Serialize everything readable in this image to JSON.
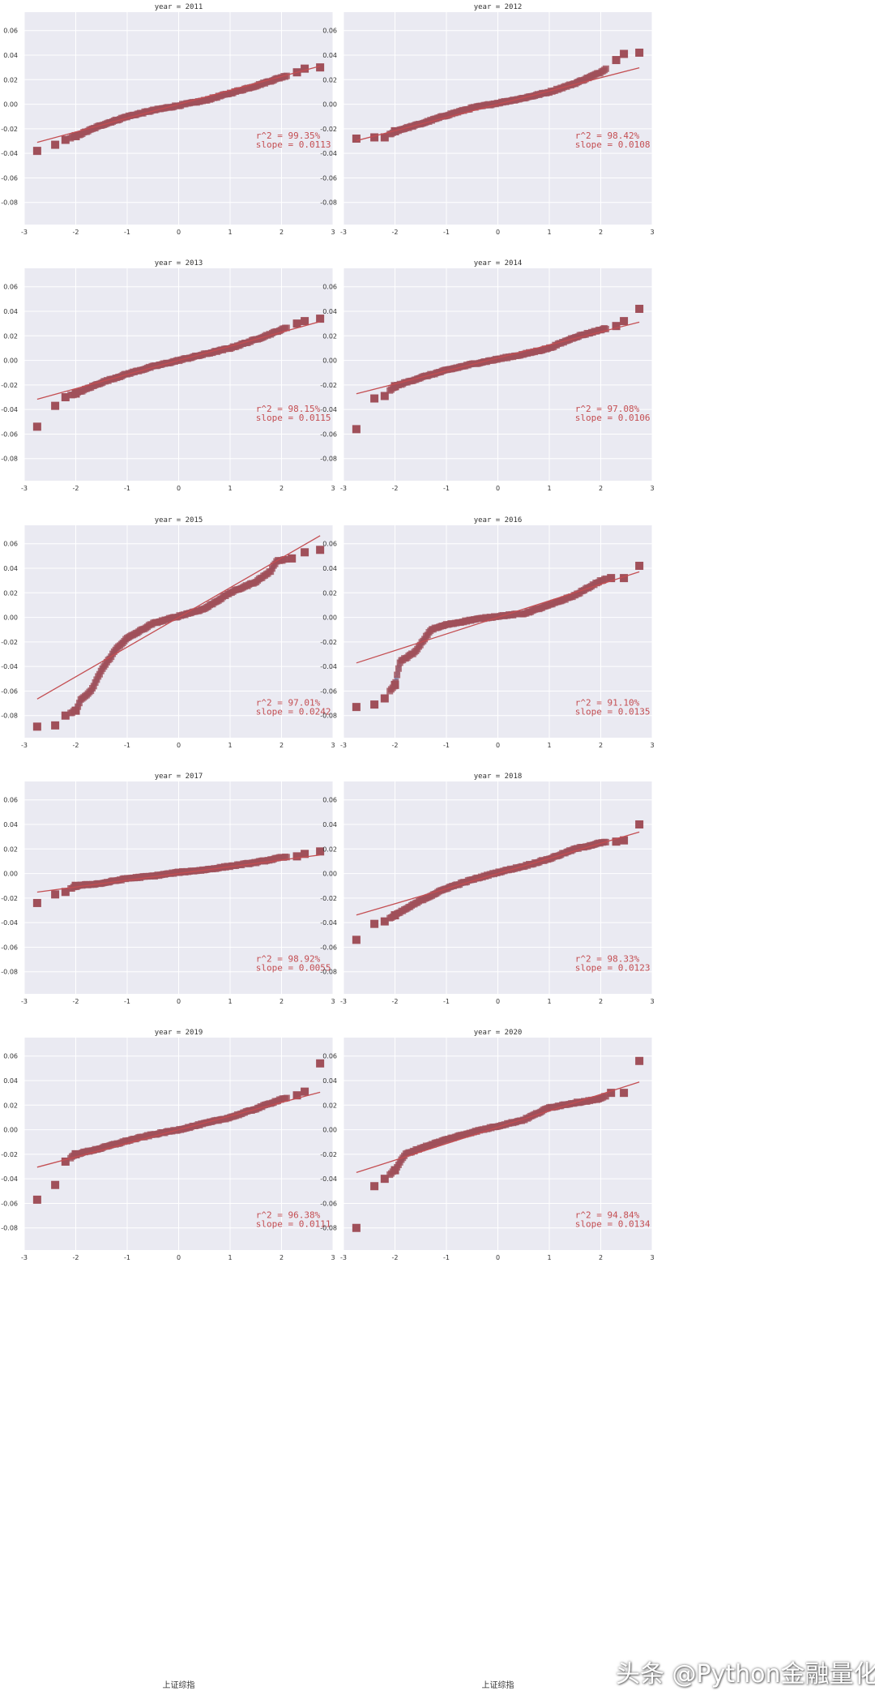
{
  "figure": {
    "xlabel": "上证综指",
    "colors": {
      "panel_bg": "#eaeaf2",
      "grid": "#ffffff",
      "marker": "#a0505a",
      "line": "#c44e52",
      "scatter": "#4c72b0",
      "annotation": "#c44e52",
      "tick_text": "#333333"
    },
    "xlim": [
      -3,
      3
    ],
    "ylim": [
      -0.098,
      0.075
    ],
    "xticks": [
      -3,
      -2,
      -1,
      0,
      1,
      2,
      3
    ],
    "yticks": [
      0.06,
      0.04,
      0.02,
      0.0,
      -0.02,
      -0.04,
      -0.06,
      -0.08
    ],
    "ytick_labels": [
      "0.06",
      "0.04",
      "0.02",
      "0.00",
      "-0.02",
      "-0.04",
      "-0.06",
      "-0.08"
    ],
    "xtick_labels": [
      "-3",
      "-2",
      "-1",
      "0",
      "1",
      "2",
      "3"
    ]
  },
  "watermark": "头条 @Python金融量化",
  "chart_data": [
    {
      "type": "scatter",
      "title": "year = 2011",
      "r2_text": "r^2 = 99.35%",
      "slope_text": "slope = 0.0113",
      "slope": 0.0113,
      "intercept": 0.0,
      "anchors": [
        [
          -2.75,
          -0.038
        ],
        [
          -2.4,
          -0.033
        ],
        [
          -2.2,
          -0.029
        ],
        [
          -2.0,
          -0.026
        ],
        [
          -1.5,
          -0.017
        ],
        [
          -1.0,
          -0.01
        ],
        [
          -0.5,
          -0.005
        ],
        [
          0,
          -0.001
        ],
        [
          0.5,
          0.003
        ],
        [
          1.0,
          0.009
        ],
        [
          1.5,
          0.015
        ],
        [
          2.0,
          0.022
        ],
        [
          2.3,
          0.026
        ],
        [
          2.45,
          0.029
        ],
        [
          2.75,
          0.03
        ]
      ]
    },
    {
      "type": "scatter",
      "title": "year = 2012",
      "r2_text": "r^2 = 98.42%",
      "slope_text": "slope = 0.0108",
      "slope": 0.0108,
      "intercept": 0.0,
      "anchors": [
        [
          -2.75,
          -0.028
        ],
        [
          -2.4,
          -0.027
        ],
        [
          -2.2,
          -0.027
        ],
        [
          -2.0,
          -0.022
        ],
        [
          -1.5,
          -0.016
        ],
        [
          -1.0,
          -0.009
        ],
        [
          -0.5,
          -0.003
        ],
        [
          0,
          0.001
        ],
        [
          0.5,
          0.005
        ],
        [
          1.0,
          0.01
        ],
        [
          1.5,
          0.017
        ],
        [
          2.0,
          0.026
        ],
        [
          2.3,
          0.036
        ],
        [
          2.45,
          0.041
        ],
        [
          2.75,
          0.042
        ]
      ]
    },
    {
      "type": "scatter",
      "title": "year = 2013",
      "r2_text": "r^2 = 98.15%",
      "slope_text": "slope = 0.0115",
      "slope": 0.0115,
      "intercept": 0.0,
      "anchors": [
        [
          -2.75,
          -0.054
        ],
        [
          -2.4,
          -0.037
        ],
        [
          -2.2,
          -0.03
        ],
        [
          -2.0,
          -0.027
        ],
        [
          -1.5,
          -0.018
        ],
        [
          -1.0,
          -0.011
        ],
        [
          -0.5,
          -0.005
        ],
        [
          0,
          0.0
        ],
        [
          0.5,
          0.005
        ],
        [
          1.0,
          0.01
        ],
        [
          1.5,
          0.017
        ],
        [
          2.0,
          0.025
        ],
        [
          2.3,
          0.03
        ],
        [
          2.45,
          0.032
        ],
        [
          2.75,
          0.034
        ]
      ]
    },
    {
      "type": "scatter",
      "title": "year = 2014",
      "r2_text": "r^2 = 97.08%",
      "slope_text": "slope = 0.0106",
      "slope": 0.0106,
      "intercept": 0.002,
      "anchors": [
        [
          -2.75,
          -0.056
        ],
        [
          -2.4,
          -0.031
        ],
        [
          -2.2,
          -0.029
        ],
        [
          -2.0,
          -0.021
        ],
        [
          -1.5,
          -0.014
        ],
        [
          -1.0,
          -0.008
        ],
        [
          -0.5,
          -0.003
        ],
        [
          0,
          0.001
        ],
        [
          0.5,
          0.005
        ],
        [
          1.0,
          0.01
        ],
        [
          1.5,
          0.019
        ],
        [
          2.0,
          0.025
        ],
        [
          2.3,
          0.028
        ],
        [
          2.45,
          0.032
        ],
        [
          2.75,
          0.042
        ]
      ]
    },
    {
      "type": "scatter",
      "title": "year = 2015",
      "r2_text": "r^2 = 97.01%",
      "slope_text": "slope = 0.0242",
      "slope": 0.0242,
      "intercept": 0.0,
      "anchors": [
        [
          -2.75,
          -0.089
        ],
        [
          -2.4,
          -0.088
        ],
        [
          -2.2,
          -0.08
        ],
        [
          -2.0,
          -0.076
        ],
        [
          -1.9,
          -0.067
        ],
        [
          -1.7,
          -0.06
        ],
        [
          -1.5,
          -0.043
        ],
        [
          -1.2,
          -0.025
        ],
        [
          -1.0,
          -0.017
        ],
        [
          -0.5,
          -0.005
        ],
        [
          0,
          0.001
        ],
        [
          0.5,
          0.007
        ],
        [
          1.0,
          0.02
        ],
        [
          1.5,
          0.029
        ],
        [
          1.8,
          0.038
        ],
        [
          1.9,
          0.046
        ],
        [
          2.2,
          0.048
        ],
        [
          2.45,
          0.053
        ],
        [
          2.75,
          0.055
        ]
      ]
    },
    {
      "type": "scatter",
      "title": "year = 2016",
      "r2_text": "r^2 = 91.10%",
      "slope_text": "slope = 0.0135",
      "slope": 0.0135,
      "intercept": 0.0,
      "anchors": [
        [
          -2.75,
          -0.073
        ],
        [
          -2.4,
          -0.071
        ],
        [
          -2.2,
          -0.066
        ],
        [
          -2.0,
          -0.055
        ],
        [
          -1.9,
          -0.036
        ],
        [
          -1.6,
          -0.028
        ],
        [
          -1.3,
          -0.01
        ],
        [
          -1.0,
          -0.006
        ],
        [
          -0.5,
          -0.002
        ],
        [
          0,
          0.001
        ],
        [
          0.5,
          0.003
        ],
        [
          1.0,
          0.01
        ],
        [
          1.5,
          0.018
        ],
        [
          2.0,
          0.03
        ],
        [
          2.2,
          0.032
        ],
        [
          2.45,
          0.032
        ],
        [
          2.75,
          0.042
        ]
      ]
    },
    {
      "type": "scatter",
      "title": "year = 2017",
      "r2_text": "r^2 = 98.92%",
      "slope_text": "slope = 0.0055",
      "slope": 0.0055,
      "intercept": 0.0,
      "anchors": [
        [
          -2.75,
          -0.024
        ],
        [
          -2.4,
          -0.017
        ],
        [
          -2.2,
          -0.015
        ],
        [
          -2.0,
          -0.01
        ],
        [
          -1.5,
          -0.008
        ],
        [
          -1.0,
          -0.004
        ],
        [
          -0.5,
          -0.002
        ],
        [
          0,
          0.001
        ],
        [
          0.5,
          0.003
        ],
        [
          1.0,
          0.006
        ],
        [
          1.5,
          0.009
        ],
        [
          2.0,
          0.013
        ],
        [
          2.3,
          0.014
        ],
        [
          2.45,
          0.016
        ],
        [
          2.75,
          0.018
        ]
      ]
    },
    {
      "type": "scatter",
      "title": "year = 2018",
      "r2_text": "r^2 = 98.33%",
      "slope_text": "slope = 0.0123",
      "slope": 0.0123,
      "intercept": 0.0,
      "anchors": [
        [
          -2.75,
          -0.054
        ],
        [
          -2.4,
          -0.041
        ],
        [
          -2.2,
          -0.039
        ],
        [
          -2.0,
          -0.034
        ],
        [
          -1.5,
          -0.022
        ],
        [
          -1.0,
          -0.012
        ],
        [
          -0.5,
          -0.005
        ],
        [
          0,
          0.001
        ],
        [
          0.5,
          0.006
        ],
        [
          1.0,
          0.012
        ],
        [
          1.5,
          0.02
        ],
        [
          2.0,
          0.025
        ],
        [
          2.3,
          0.026
        ],
        [
          2.45,
          0.027
        ],
        [
          2.75,
          0.04
        ]
      ]
    },
    {
      "type": "scatter",
      "title": "year = 2019",
      "r2_text": "r^2 = 96.38%",
      "slope_text": "slope = 0.0111",
      "slope": 0.0111,
      "intercept": 0.0,
      "anchors": [
        [
          -2.75,
          -0.057
        ],
        [
          -2.4,
          -0.045
        ],
        [
          -2.2,
          -0.026
        ],
        [
          -2.0,
          -0.02
        ],
        [
          -1.5,
          -0.015
        ],
        [
          -1.0,
          -0.009
        ],
        [
          -0.5,
          -0.004
        ],
        [
          0,
          0.0
        ],
        [
          0.5,
          0.005
        ],
        [
          1.0,
          0.01
        ],
        [
          1.5,
          0.017
        ],
        [
          2.0,
          0.025
        ],
        [
          2.3,
          0.028
        ],
        [
          2.45,
          0.031
        ],
        [
          2.75,
          0.054
        ]
      ]
    },
    {
      "type": "scatter",
      "title": "year = 2020",
      "r2_text": "r^2 = 94.84%",
      "slope_text": "slope = 0.0134",
      "slope": 0.0134,
      "intercept": 0.002,
      "anchors": [
        [
          -2.75,
          -0.08
        ],
        [
          -2.4,
          -0.046
        ],
        [
          -2.2,
          -0.04
        ],
        [
          -2.0,
          -0.033
        ],
        [
          -1.8,
          -0.02
        ],
        [
          -1.5,
          -0.015
        ],
        [
          -1.0,
          -0.008
        ],
        [
          -0.5,
          -0.002
        ],
        [
          0,
          0.003
        ],
        [
          0.5,
          0.008
        ],
        [
          1.0,
          0.018
        ],
        [
          1.5,
          0.022
        ],
        [
          2.0,
          0.025
        ],
        [
          2.2,
          0.03
        ],
        [
          2.45,
          0.03
        ],
        [
          2.75,
          0.056
        ]
      ]
    }
  ]
}
